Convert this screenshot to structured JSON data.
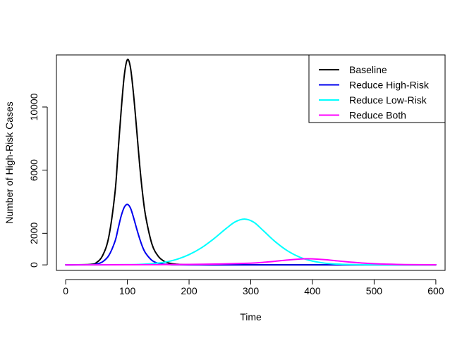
{
  "chart_data": {
    "type": "line",
    "title": "",
    "xlabel": "Time",
    "ylabel": "Number of High-Risk Cases",
    "xlim": [
      -15,
      615
    ],
    "ylim": [
      -350,
      13300
    ],
    "xticks": [
      0,
      100,
      200,
      300,
      400,
      500,
      600
    ],
    "yticks": [
      0,
      2000,
      6000,
      10000
    ],
    "grid": false,
    "legend_position": "top-right",
    "series": [
      {
        "name": "Baseline",
        "color": "#000000",
        "x": [
          0,
          40,
          50,
          60,
          70,
          80,
          85,
          90,
          95,
          100,
          105,
          110,
          115,
          120,
          125,
          130,
          140,
          150,
          160,
          170,
          180,
          200,
          250,
          300,
          400,
          500,
          600
        ],
        "y": [
          0,
          30,
          150,
          600,
          1800,
          4600,
          7200,
          9800,
          12000,
          13000,
          12500,
          10800,
          8600,
          6300,
          4400,
          3000,
          1300,
          550,
          220,
          90,
          40,
          10,
          3,
          2,
          1,
          0,
          0
        ]
      },
      {
        "name": "Reduce High-Risk",
        "color": "#0000ee",
        "x": [
          0,
          40,
          50,
          60,
          70,
          80,
          85,
          90,
          95,
          100,
          105,
          110,
          115,
          120,
          125,
          130,
          140,
          150,
          160,
          170,
          180,
          200,
          250,
          300,
          400,
          500,
          600
        ],
        "y": [
          0,
          10,
          50,
          200,
          600,
          1500,
          2300,
          3100,
          3650,
          3830,
          3600,
          3000,
          2300,
          1650,
          1100,
          720,
          280,
          100,
          40,
          15,
          6,
          2,
          1,
          0,
          0,
          0,
          0
        ]
      },
      {
        "name": "Reduce Low-Risk",
        "color": "#00ffff",
        "x": [
          0,
          100,
          120,
          140,
          160,
          180,
          200,
          220,
          240,
          260,
          275,
          290,
          305,
          320,
          340,
          360,
          380,
          400,
          420,
          440,
          460,
          480,
          500,
          550,
          600
        ],
        "y": [
          0,
          10,
          30,
          80,
          170,
          350,
          650,
          1080,
          1650,
          2300,
          2730,
          2900,
          2700,
          2180,
          1460,
          880,
          480,
          240,
          110,
          50,
          22,
          10,
          5,
          1,
          0
        ]
      },
      {
        "name": "Reduce Both",
        "color": "#ff00ff",
        "x": [
          0,
          100,
          150,
          200,
          250,
          300,
          320,
          340,
          360,
          380,
          390,
          400,
          420,
          440,
          460,
          480,
          500,
          520,
          550,
          600
        ],
        "y": [
          0,
          5,
          15,
          30,
          55,
          110,
          160,
          230,
          310,
          370,
          385,
          380,
          330,
          255,
          180,
          120,
          75,
          45,
          20,
          5
        ]
      }
    ]
  }
}
